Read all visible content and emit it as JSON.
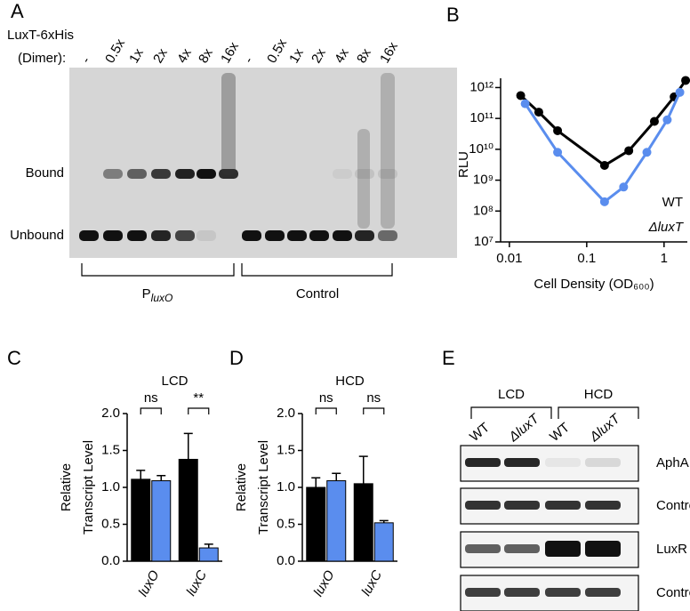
{
  "panels": [
    "A",
    "B",
    "C",
    "D",
    "E"
  ],
  "gel": {
    "header": [
      "LuxT-6xHis",
      "(Dimer):"
    ],
    "lanes": [
      "-",
      "0.5x",
      "1x",
      "2x",
      "4x",
      "8x",
      "16x",
      "-",
      "0.5x",
      "1x",
      "2x",
      "4x",
      "8x",
      "16x"
    ],
    "bands": [
      "Bound",
      "Unbound"
    ],
    "groups": [
      {
        "label": "P",
        "label_sub": "luxO"
      },
      {
        "label": "Control"
      }
    ]
  },
  "chart_data": [
    {
      "type": "line",
      "y_label": "RLU",
      "x_label": "Cell Density (OD₆₀₀)",
      "log_x": true,
      "log_y": true,
      "xlim": [
        0.0077,
        2
      ],
      "ylim": [
        10000000,
        2000000000000
      ],
      "xticks": [
        0.01,
        0.1,
        1
      ],
      "yticks": [
        {
          "value": 10000000,
          "label": "10⁷"
        },
        {
          "value": 100000000,
          "label": "10⁸"
        },
        {
          "value": 1000000000,
          "label": "10⁹"
        },
        {
          "value": 10000000000,
          "label": "10¹⁰"
        },
        {
          "value": 100000000000,
          "label": "10¹¹"
        },
        {
          "value": 1000000000000,
          "label": "10¹²"
        }
      ],
      "series": [
        {
          "name": "WT",
          "color": "#000000",
          "x": [
            0.014,
            0.024,
            0.042,
            0.17,
            0.35,
            0.75,
            1.35,
            1.9
          ],
          "values": [
            550000000000,
            160000000000,
            40000000000,
            3000000000,
            9000000000,
            80000000000,
            500000000000,
            1700000000000
          ]
        },
        {
          "name": "ΔluxT",
          "color": "#5a8dee",
          "x": [
            0.016,
            0.042,
            0.17,
            0.3,
            0.6,
            1.1,
            1.6
          ],
          "values": [
            300000000000,
            8000000000,
            200000000,
            600000000,
            8000000000,
            90000000000,
            700000000000
          ]
        }
      ],
      "legend": "right"
    },
    {
      "type": "bar",
      "title": "LCD",
      "y_label": [
        "Relative",
        "Transcript Level"
      ],
      "categories": [
        "luxO",
        "luxC"
      ],
      "series": [
        {
          "color": "#000000",
          "values": [
            1.11,
            1.38
          ],
          "errors": [
            0.12,
            0.35
          ]
        },
        {
          "color": "#5a8dee",
          "values": [
            1.09,
            0.18
          ],
          "errors": [
            0.07,
            0.05
          ]
        }
      ],
      "ylim": [
        0,
        2
      ],
      "yticks": [
        {
          "value": 0,
          "label": "0.0"
        },
        0.5,
        {
          "value": 1,
          "label": "1.0"
        },
        1.5,
        {
          "value": 2,
          "label": "2.0"
        }
      ],
      "annotations": [
        "ns",
        "**"
      ]
    },
    {
      "type": "bar",
      "title": "HCD",
      "y_label": [
        "Relative",
        "Transcript Level"
      ],
      "categories": [
        "luxO",
        "luxC"
      ],
      "series": [
        {
          "color": "#000000",
          "values": [
            1.0,
            1.05
          ],
          "errors": [
            0.13,
            0.37
          ]
        },
        {
          "color": "#5a8dee",
          "values": [
            1.09,
            0.52
          ],
          "errors": [
            0.1,
            0.03
          ]
        }
      ],
      "ylim": [
        0,
        2
      ],
      "yticks": [
        {
          "value": 0,
          "label": "0.0"
        },
        0.5,
        {
          "value": 1,
          "label": "1.0"
        },
        1.5,
        {
          "value": 2,
          "label": "2.0"
        }
      ],
      "annotations": [
        "ns",
        "ns"
      ]
    }
  ],
  "blot": {
    "groups": [
      "LCD",
      "HCD"
    ],
    "lanes": [
      "WT",
      "ΔluxT",
      "WT",
      "ΔluxT"
    ],
    "rows": [
      "AphA",
      "Control",
      "LuxR",
      "Control"
    ]
  }
}
